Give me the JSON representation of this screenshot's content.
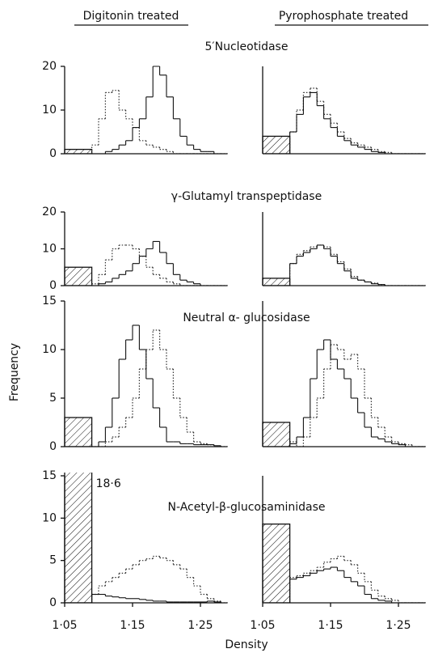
{
  "column_titles": [
    "Digitonin treated",
    "Pyrophosphate treated"
  ],
  "ylabel": "Frequency",
  "xlabel": "Density",
  "chart_data": [
    {
      "type": "histogram",
      "title": "5′Nucleotidase",
      "bins": [
        1.09,
        1.1,
        1.11,
        1.12,
        1.13,
        1.14,
        1.15,
        1.16,
        1.17,
        1.18,
        1.19,
        1.2,
        1.21,
        1.22,
        1.23,
        1.24,
        1.25,
        1.26,
        1.27,
        1.28,
        1.29
      ],
      "series": [
        {
          "style": "dotted",
          "color": "#333333",
          "values": [
            2,
            8,
            14,
            14.5,
            10,
            8,
            6,
            3,
            2,
            1.5,
            1,
            0.5,
            0,
            0,
            0,
            0,
            0,
            0,
            0,
            0
          ]
        },
        {
          "style": "solid",
          "color": "#111111",
          "values": [
            0,
            0,
            0.5,
            1,
            2,
            3,
            6,
            8,
            13,
            20,
            18,
            13,
            8,
            4,
            2,
            1,
            0.5,
            0.5,
            0,
            0
          ]
        }
      ],
      "hatched": {
        "bins": [
          1.05,
          1.09
        ],
        "values": [
          1
        ]
      },
      "xlim": [
        1.05,
        1.29
      ],
      "ylim": [
        0,
        20
      ],
      "yticks": [
        0,
        10,
        20
      ]
    },
    {
      "type": "histogram",
      "bins": [
        1.09,
        1.1,
        1.11,
        1.12,
        1.13,
        1.14,
        1.15,
        1.16,
        1.17,
        1.18,
        1.19,
        1.2,
        1.21,
        1.22,
        1.23,
        1.24,
        1.25,
        1.26,
        1.27,
        1.28,
        1.29
      ],
      "series": [
        {
          "style": "dotted",
          "color": "#333333",
          "values": [
            5,
            10,
            14,
            15,
            12,
            9,
            7,
            5,
            3.5,
            2.5,
            2,
            1.5,
            1,
            0.5,
            0.3,
            0,
            0,
            0,
            0,
            0
          ]
        },
        {
          "style": "solid",
          "color": "#111111",
          "values": [
            5,
            9,
            13,
            14,
            11,
            8,
            6,
            4,
            3,
            2,
            1.5,
            1,
            0.5,
            0.3,
            0,
            0,
            0,
            0,
            0,
            0
          ]
        }
      ],
      "hatched": {
        "bins": [
          1.05,
          1.09
        ],
        "values": [
          4
        ]
      },
      "xlim": [
        1.05,
        1.29
      ],
      "ylim": [
        0,
        20
      ]
    },
    {
      "type": "histogram",
      "title": "γ-Glutamyl transpeptidase",
      "bins": [
        1.09,
        1.1,
        1.11,
        1.12,
        1.13,
        1.14,
        1.15,
        1.16,
        1.17,
        1.18,
        1.19,
        1.2,
        1.21,
        1.22,
        1.23,
        1.24,
        1.25,
        1.26,
        1.27,
        1.28,
        1.29
      ],
      "series": [
        {
          "style": "dotted",
          "color": "#333333",
          "values": [
            0.5,
            3,
            7,
            10,
            11,
            11,
            10,
            8,
            5,
            3,
            2,
            1,
            0.5,
            0,
            0,
            0,
            0,
            0,
            0,
            0
          ]
        },
        {
          "style": "solid",
          "color": "#111111",
          "values": [
            0,
            0.5,
            1,
            2,
            3,
            4,
            6,
            8,
            10,
            12,
            9,
            6,
            3,
            1.5,
            1,
            0.5,
            0,
            0,
            0,
            0
          ]
        }
      ],
      "hatched": {
        "bins": [
          1.05,
          1.09
        ],
        "values": [
          5
        ]
      },
      "xlim": [
        1.05,
        1.29
      ],
      "ylim": [
        0,
        20
      ],
      "yticks": [
        0,
        10,
        20
      ]
    },
    {
      "type": "histogram",
      "bins": [
        1.09,
        1.1,
        1.11,
        1.12,
        1.13,
        1.14,
        1.15,
        1.16,
        1.17,
        1.18,
        1.19,
        1.2,
        1.21,
        1.22,
        1.23,
        1.24,
        1.25,
        1.26,
        1.27,
        1.28,
        1.29
      ],
      "series": [
        {
          "style": "dotted",
          "color": "#333333",
          "values": [
            6,
            8.5,
            9.5,
            10.5,
            11,
            10.5,
            8.5,
            6.5,
            4.5,
            2.5,
            1.5,
            1,
            0.7,
            0.3,
            0,
            0,
            0,
            0,
            0,
            0
          ]
        },
        {
          "style": "solid",
          "color": "#111111",
          "values": [
            6,
            8,
            9,
            10,
            11,
            10,
            8,
            6,
            4,
            2,
            1.5,
            1,
            0.5,
            0.3,
            0,
            0,
            0,
            0,
            0,
            0
          ]
        }
      ],
      "hatched": {
        "bins": [
          1.05,
          1.09
        ],
        "values": [
          2
        ]
      },
      "xlim": [
        1.05,
        1.29
      ],
      "ylim": [
        0,
        20
      ]
    },
    {
      "type": "histogram",
      "title": "Neutral α- glucosidase",
      "bins": [
        1.09,
        1.1,
        1.11,
        1.12,
        1.13,
        1.14,
        1.15,
        1.16,
        1.17,
        1.18,
        1.19,
        1.2,
        1.21,
        1.22,
        1.23,
        1.24,
        1.25,
        1.26,
        1.27,
        1.28,
        1.29
      ],
      "series": [
        {
          "style": "dotted",
          "color": "#333333",
          "values": [
            0,
            0,
            0.5,
            1,
            2,
            3,
            5,
            8,
            10,
            12,
            10,
            8,
            5,
            3,
            1.5,
            0.5,
            0.3,
            0.2,
            0,
            0
          ]
        },
        {
          "style": "solid",
          "color": "#111111",
          "values": [
            0,
            0.5,
            2,
            5,
            9,
            11,
            12.5,
            10,
            7,
            4,
            2,
            0.5,
            0.5,
            0.3,
            0.3,
            0.2,
            0.2,
            0.2,
            0.1,
            0
          ]
        }
      ],
      "hatched": {
        "bins": [
          1.05,
          1.09
        ],
        "values": [
          3
        ]
      },
      "xlim": [
        1.05,
        1.29
      ],
      "ylim": [
        0,
        15
      ],
      "yticks": [
        0,
        5,
        10,
        15
      ]
    },
    {
      "type": "histogram",
      "bins": [
        1.09,
        1.1,
        1.11,
        1.12,
        1.13,
        1.14,
        1.15,
        1.16,
        1.17,
        1.18,
        1.19,
        1.2,
        1.21,
        1.22,
        1.23,
        1.24,
        1.25,
        1.26,
        1.27,
        1.28,
        1.29
      ],
      "series": [
        {
          "style": "dotted",
          "color": "#333333",
          "values": [
            0.5,
            0,
            1,
            3,
            5,
            8,
            10.5,
            10,
            9,
            9.5,
            8,
            5,
            3,
            2,
            1,
            0.5,
            0.3,
            0.2,
            0,
            0
          ]
        },
        {
          "style": "solid",
          "color": "#111111",
          "values": [
            0.3,
            1,
            3,
            7,
            10,
            11,
            9,
            8,
            7,
            5,
            3.5,
            2,
            1,
            0.8,
            0.5,
            0.3,
            0.2,
            0,
            0,
            0
          ]
        }
      ],
      "hatched": {
        "bins": [
          1.05,
          1.09
        ],
        "values": [
          2.5
        ]
      },
      "xlim": [
        1.05,
        1.29
      ],
      "ylim": [
        0,
        15
      ]
    },
    {
      "type": "histogram",
      "title": "N-Acetyl-β-glucosaminidase",
      "bins": [
        1.09,
        1.1,
        1.11,
        1.12,
        1.13,
        1.14,
        1.15,
        1.16,
        1.17,
        1.18,
        1.19,
        1.2,
        1.21,
        1.22,
        1.23,
        1.24,
        1.25,
        1.26,
        1.27,
        1.28,
        1.29
      ],
      "series": [
        {
          "style": "dotted",
          "color": "#333333",
          "values": [
            1,
            2,
            2.5,
            3,
            3.5,
            4,
            4.5,
            5,
            5.2,
            5.5,
            5.3,
            5,
            4.5,
            4,
            3,
            2,
            1,
            0.5,
            0.2,
            0
          ]
        },
        {
          "style": "solid",
          "color": "#111111",
          "values": [
            1,
            1,
            0.8,
            0.7,
            0.6,
            0.5,
            0.5,
            0.4,
            0.3,
            0.2,
            0.2,
            0.1,
            0.1,
            0.1,
            0.1,
            0.1,
            0.1,
            0.2,
            0.1,
            0
          ]
        }
      ],
      "hatched": {
        "bins": [
          1.05,
          1.09
        ],
        "values": [
          18.6
        ],
        "value_labels": [
          "18·6"
        ]
      },
      "xlim": [
        1.05,
        1.29
      ],
      "ylim": [
        0,
        15
      ],
      "yticks": [
        0,
        5,
        10,
        15
      ],
      "xticks": [
        {
          "value": 1.05,
          "label": "1·05"
        },
        {
          "value": 1.15,
          "label": "1·15"
        },
        {
          "value": 1.25,
          "label": "1·25"
        }
      ]
    },
    {
      "type": "histogram",
      "bins": [
        1.09,
        1.1,
        1.11,
        1.12,
        1.13,
        1.14,
        1.15,
        1.16,
        1.17,
        1.18,
        1.19,
        1.2,
        1.21,
        1.22,
        1.23,
        1.24,
        1.25,
        1.26,
        1.27,
        1.28,
        1.29
      ],
      "series": [
        {
          "style": "dotted",
          "color": "#333333",
          "values": [
            3,
            3.2,
            3.5,
            3.8,
            4.2,
            4.8,
            5.2,
            5.5,
            5,
            4.5,
            3.5,
            2.5,
            1.5,
            0.8,
            0.5,
            0.3,
            0,
            0,
            0,
            0
          ]
        },
        {
          "style": "solid",
          "color": "#111111",
          "values": [
            2.8,
            3,
            3.2,
            3.5,
            3.8,
            4,
            4.2,
            3.8,
            3,
            2.5,
            2,
            1,
            0.5,
            0.3,
            0.2,
            0,
            0,
            0,
            0,
            0
          ]
        }
      ],
      "hatched": {
        "bins": [
          1.05,
          1.09
        ],
        "values": [
          9.3
        ]
      },
      "xlim": [
        1.05,
        1.29
      ],
      "ylim": [
        0,
        15
      ],
      "xticks": [
        {
          "value": 1.05,
          "label": "1·05"
        },
        {
          "value": 1.15,
          "label": "1·15"
        },
        {
          "value": 1.25,
          "label": "1·25"
        }
      ]
    }
  ]
}
